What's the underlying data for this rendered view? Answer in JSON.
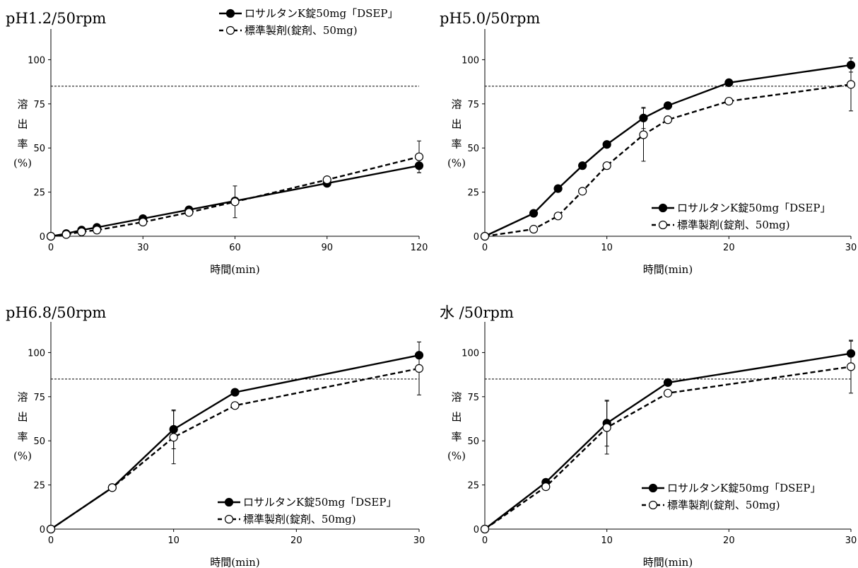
{
  "figure": {
    "ylabel_lines": [
      "溶",
      "出",
      "率",
      "(%)"
    ],
    "xlabel": "時間(min)"
  },
  "chart_data": [
    {
      "type": "line",
      "title": "pH1.2/50rpm",
      "xlabel": "時間(min)",
      "ylabel": "溶出率(%)",
      "xlim": [
        0,
        120
      ],
      "ylim": [
        0,
        115
      ],
      "xticks": [
        0,
        30,
        60,
        90,
        120
      ],
      "yticks": [
        0,
        25,
        50,
        75,
        100
      ],
      "reference_line": 85,
      "legend_position": "top-center",
      "series": [
        {
          "name": "ロサルタンK錠50mg「DSEP」",
          "marker": "filled-circle",
          "line": "solid",
          "x": [
            0,
            5,
            10,
            15,
            30,
            45,
            60,
            90,
            120
          ],
          "values": [
            0,
            1.5,
            3.5,
            5,
            10,
            15,
            20,
            30,
            40
          ],
          "error": [
            0,
            0,
            0,
            0,
            0,
            0,
            0,
            0,
            4
          ]
        },
        {
          "name": "標準製剤(錠剤、50mg)",
          "marker": "open-circle",
          "line": "dashed",
          "x": [
            0,
            5,
            10,
            15,
            30,
            45,
            60,
            90,
            120
          ],
          "values": [
            0,
            1,
            2.5,
            3.5,
            8,
            13.5,
            19.5,
            32,
            45
          ],
          "error": [
            0,
            0,
            0,
            0,
            0,
            0,
            9,
            0,
            9
          ]
        }
      ]
    },
    {
      "type": "line",
      "title": "pH5.0/50rpm",
      "xlabel": "時間(min)",
      "ylabel": "溶出率(%)",
      "xlim": [
        0,
        30
      ],
      "ylim": [
        0,
        115
      ],
      "xticks": [
        0,
        10,
        20,
        30
      ],
      "yticks": [
        0,
        25,
        50,
        75,
        100
      ],
      "reference_line": 85,
      "legend_position": "bottom-right",
      "series": [
        {
          "name": "ロサルタンK錠50mg「DSEP」",
          "marker": "filled-circle",
          "line": "solid",
          "x": [
            0,
            4,
            6,
            8,
            10,
            13,
            15,
            20,
            30
          ],
          "values": [
            0,
            13,
            27,
            40,
            52,
            67,
            74,
            87,
            97
          ],
          "error": [
            0,
            0,
            0,
            0,
            0,
            6,
            0,
            0,
            4
          ]
        },
        {
          "name": "標準製剤(錠剤、50mg)",
          "marker": "open-circle",
          "line": "dashed",
          "x": [
            0,
            4,
            6,
            8,
            10,
            13,
            15,
            20,
            30
          ],
          "values": [
            0,
            4,
            11.5,
            25.5,
            40,
            57.5,
            66,
            76.5,
            86
          ],
          "error": [
            0,
            0,
            0,
            0,
            0,
            15,
            0,
            0,
            15
          ]
        }
      ]
    },
    {
      "type": "line",
      "title": "pH6.8/50rpm",
      "xlabel": "時間(min)",
      "ylabel": "溶出率(%)",
      "xlim": [
        0,
        30
      ],
      "ylim": [
        0,
        115
      ],
      "xticks": [
        0,
        10,
        20,
        30
      ],
      "yticks": [
        0,
        25,
        50,
        75,
        100
      ],
      "reference_line": 85,
      "legend_position": "bottom-right",
      "series": [
        {
          "name": "ロサルタンK錠50mg「DSEP」",
          "marker": "filled-circle",
          "line": "solid",
          "x": [
            0,
            5,
            10,
            15,
            30
          ],
          "values": [
            0,
            23.5,
            56.5,
            77.5,
            98.5
          ],
          "error": [
            0,
            0,
            11,
            0,
            7.5
          ]
        },
        {
          "name": "標準製剤(錠剤、50mg)",
          "marker": "open-circle",
          "line": "dashed",
          "x": [
            0,
            5,
            10,
            15,
            30
          ],
          "values": [
            0,
            23.5,
            52,
            70,
            91
          ],
          "error": [
            0,
            0,
            15,
            0,
            15
          ]
        }
      ]
    },
    {
      "type": "line",
      "title": "水 /50rpm",
      "xlabel": "時間(min)",
      "ylabel": "溶出率(%)",
      "xlim": [
        0,
        30
      ],
      "ylim": [
        0,
        115
      ],
      "xticks": [
        0,
        10,
        20,
        30
      ],
      "yticks": [
        0,
        25,
        50,
        75,
        100
      ],
      "reference_line": 85,
      "legend_position": "bottom-right",
      "series": [
        {
          "name": "ロサルタンK錠50mg「DSEP」",
          "marker": "filled-circle",
          "line": "solid",
          "x": [
            0,
            5,
            10,
            15,
            30
          ],
          "values": [
            0,
            26.5,
            60,
            83,
            99.5
          ],
          "error": [
            0,
            0,
            13,
            0,
            7
          ]
        },
        {
          "name": "標準製剤(錠剤、50mg)",
          "marker": "open-circle",
          "line": "dashed",
          "x": [
            0,
            5,
            10,
            15,
            30
          ],
          "values": [
            0,
            24,
            57.5,
            77,
            92
          ],
          "error": [
            0,
            0,
            15,
            0,
            15
          ]
        }
      ]
    }
  ]
}
